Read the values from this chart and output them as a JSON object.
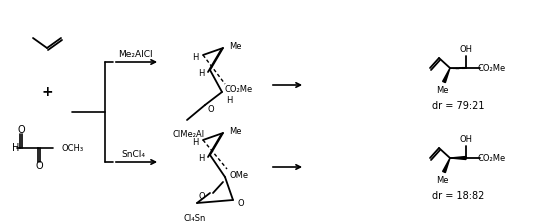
{
  "fig_width": 5.5,
  "fig_height": 2.24,
  "dpi": 100,
  "bg_color": "#ffffff",
  "reagent1": "Me₂AlCl",
  "reagent2": "SnCl₄",
  "dr1": "dr = 79:21",
  "dr2": "dr = 18:82",
  "line_color": "#000000",
  "text_color": "#000000",
  "font_size": 7.0,
  "small_font": 6.0
}
